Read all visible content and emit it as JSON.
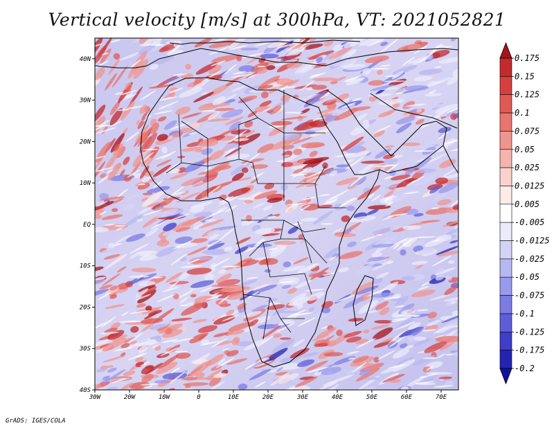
{
  "title": "Vertical velocity [m/s] at 300hPa, VT: 2021052821",
  "credit": "GrADS: IGES/COLA",
  "map": {
    "lon_range": [
      -30,
      75
    ],
    "lat_range": [
      -40,
      45
    ],
    "lat_labels": [
      "40N",
      "30N",
      "20N",
      "10N",
      "EQ",
      "10S",
      "20S",
      "30S",
      "40S"
    ],
    "lon_labels": [
      "30W",
      "20W",
      "10W",
      "0",
      "10E",
      "20E",
      "30E",
      "40E",
      "50E",
      "60E",
      "70E"
    ]
  },
  "colorbar": {
    "labels": [
      "0.175",
      "0.15",
      "0.125",
      "0.1",
      "0.075",
      "0.05",
      "0.025",
      "0.0125",
      "0.005",
      "-0.005",
      "-0.0125",
      "-0.025",
      "-0.05",
      "-0.075",
      "-0.1",
      "-0.125",
      "-0.175",
      "-0.2"
    ],
    "colors": [
      "#a5141a",
      "#c22a2e",
      "#d5403e",
      "#e05a55",
      "#e8766e",
      "#ef9590",
      "#f5b4ae",
      "#f9d2cd",
      "#fdebe8",
      "#ffffff",
      "#ebebfc",
      "#d3d3f8",
      "#b7b7f2",
      "#9a9aec",
      "#7c7ce3",
      "#5e5ed8",
      "#3e3ec8",
      "#2424b0",
      "#1111a0"
    ]
  }
}
